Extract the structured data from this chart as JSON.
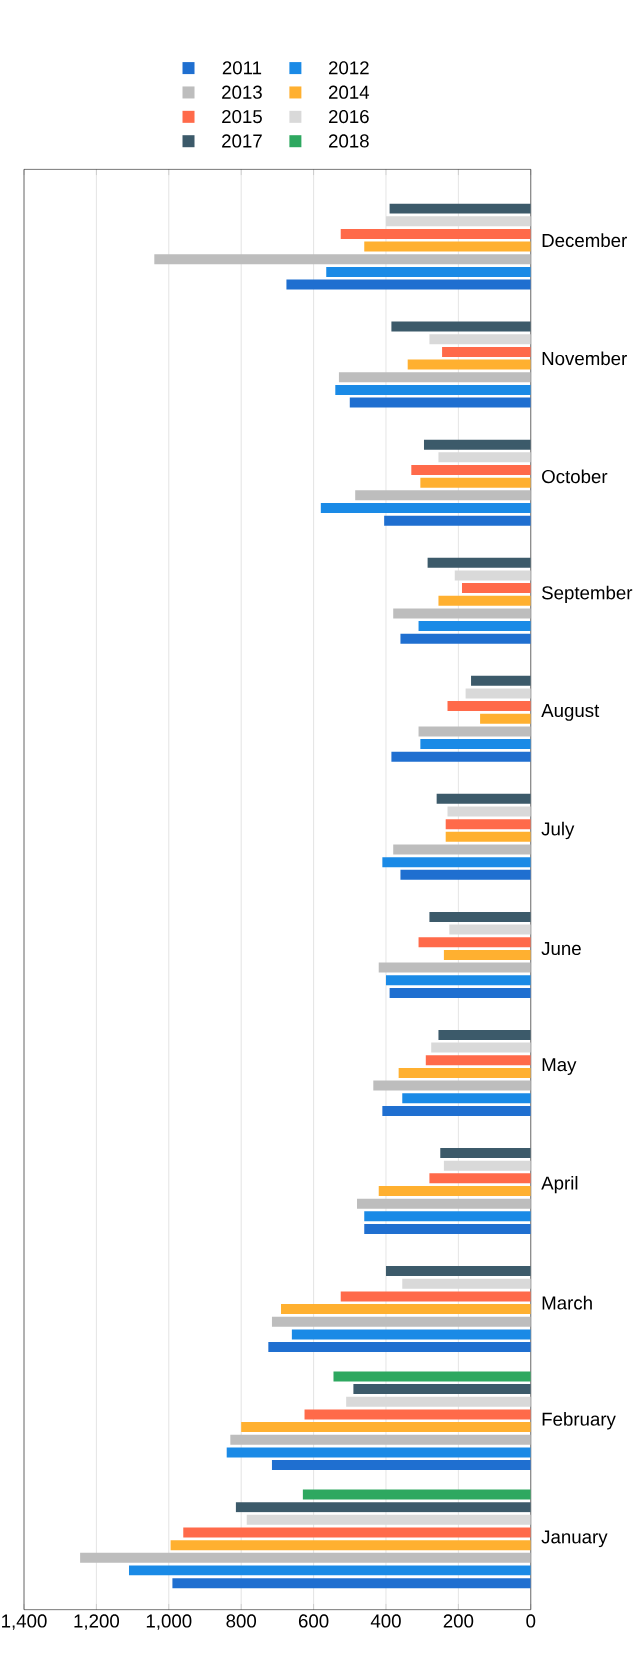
{
  "chart_data": {
    "type": "bar",
    "orientation": "horizontal",
    "categories": [
      "December",
      "November",
      "October",
      "September",
      "August",
      "July",
      "June",
      "May",
      "April",
      "March",
      "February",
      "January"
    ],
    "series": [
      {
        "name": "2011",
        "color": "#1f6fd0",
        "values": [
          675,
          500,
          405,
          360,
          385,
          360,
          390,
          410,
          460,
          725,
          715,
          990
        ]
      },
      {
        "name": "2012",
        "color": "#1a8ae6",
        "values": [
          565,
          540,
          580,
          310,
          305,
          410,
          400,
          355,
          460,
          660,
          840,
          1110
        ]
      },
      {
        "name": "2013",
        "color": "#bdbdbd",
        "values": [
          1040,
          530,
          485,
          380,
          310,
          380,
          420,
          435,
          480,
          715,
          830,
          1245
        ]
      },
      {
        "name": "2014",
        "color": "#ffb030",
        "values": [
          460,
          340,
          305,
          255,
          140,
          235,
          240,
          365,
          420,
          690,
          800,
          995
        ]
      },
      {
        "name": "2015",
        "color": "#ff6a4a",
        "values": [
          525,
          245,
          330,
          190,
          230,
          235,
          310,
          290,
          280,
          525,
          625,
          960
        ]
      },
      {
        "name": "2016",
        "color": "#d9d9d9",
        "values": [
          400,
          280,
          255,
          210,
          180,
          230,
          225,
          275,
          240,
          355,
          510,
          785
        ]
      },
      {
        "name": "2017",
        "color": "#3c5a6a",
        "values": [
          390,
          385,
          295,
          285,
          165,
          260,
          280,
          255,
          250,
          400,
          490,
          815
        ]
      },
      {
        "name": "2018",
        "color": "#2ea860",
        "values": [
          null,
          null,
          null,
          null,
          null,
          null,
          null,
          null,
          null,
          null,
          545,
          630
        ]
      }
    ],
    "xlim": [
      1400,
      0
    ],
    "xticks": [
      {
        "value": 1400,
        "label": "1,400"
      },
      {
        "value": 1200,
        "label": "1,200"
      },
      {
        "value": 1000,
        "label": "1,000"
      },
      800,
      600,
      400,
      200,
      0
    ],
    "grid": "x",
    "legend": "top"
  }
}
